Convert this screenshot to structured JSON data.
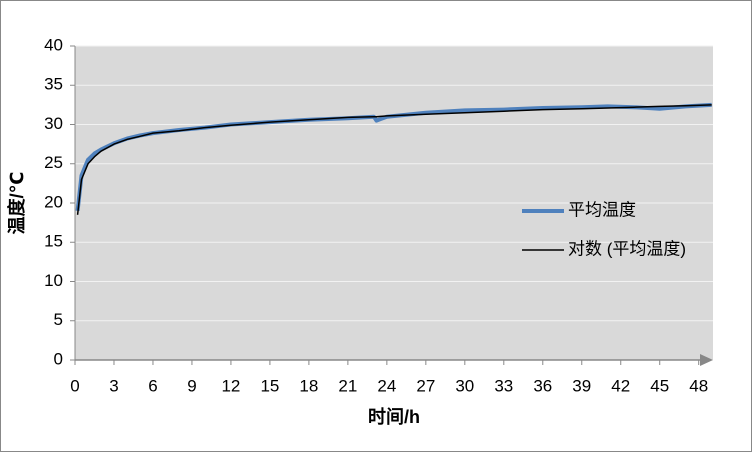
{
  "chart_data": {
    "type": "line",
    "y_label": "温度/℃",
    "x_label": "时间/h",
    "x": [
      0.2,
      0.5,
      1,
      1.5,
      2,
      3,
      4,
      5,
      6,
      8,
      10,
      12,
      15,
      18,
      21,
      23,
      23.2,
      24,
      27,
      30,
      33,
      36,
      39,
      41,
      43,
      45,
      47,
      49
    ],
    "series": [
      {
        "name": "平均温度",
        "color": "#4f81bd",
        "values": [
          19,
          23.5,
          25.5,
          26.3,
          26.8,
          27.6,
          28.2,
          28.6,
          28.9,
          29.3,
          29.6,
          30,
          30.3,
          30.6,
          30.8,
          31,
          30.5,
          31,
          31.5,
          31.8,
          31.9,
          32.1,
          32.2,
          32.3,
          32.2,
          32,
          32.3,
          32.5
        ]
      },
      {
        "name": "对数 (平均温度)",
        "color": "#000000",
        "values": [
          18.5,
          23,
          25,
          25.9,
          26.6,
          27.5,
          28.1,
          28.5,
          28.9,
          29.2,
          29.6,
          29.9,
          30.3,
          30.6,
          30.9,
          31,
          31,
          31.1,
          31.3,
          31.5,
          31.7,
          31.9,
          32,
          32.1,
          32.2,
          32.3,
          32.4,
          32.5
        ]
      }
    ],
    "xlim": [
      0,
      49.1
    ],
    "xticks": [
      0,
      3,
      6,
      9,
      12,
      15,
      18,
      21,
      24,
      27,
      30,
      33,
      36,
      39,
      42,
      45,
      48
    ],
    "ylim": [
      0,
      40
    ],
    "yticks": [
      0,
      5,
      10,
      15,
      20,
      25,
      30,
      35,
      40
    ],
    "grid": true,
    "legend": "right"
  }
}
